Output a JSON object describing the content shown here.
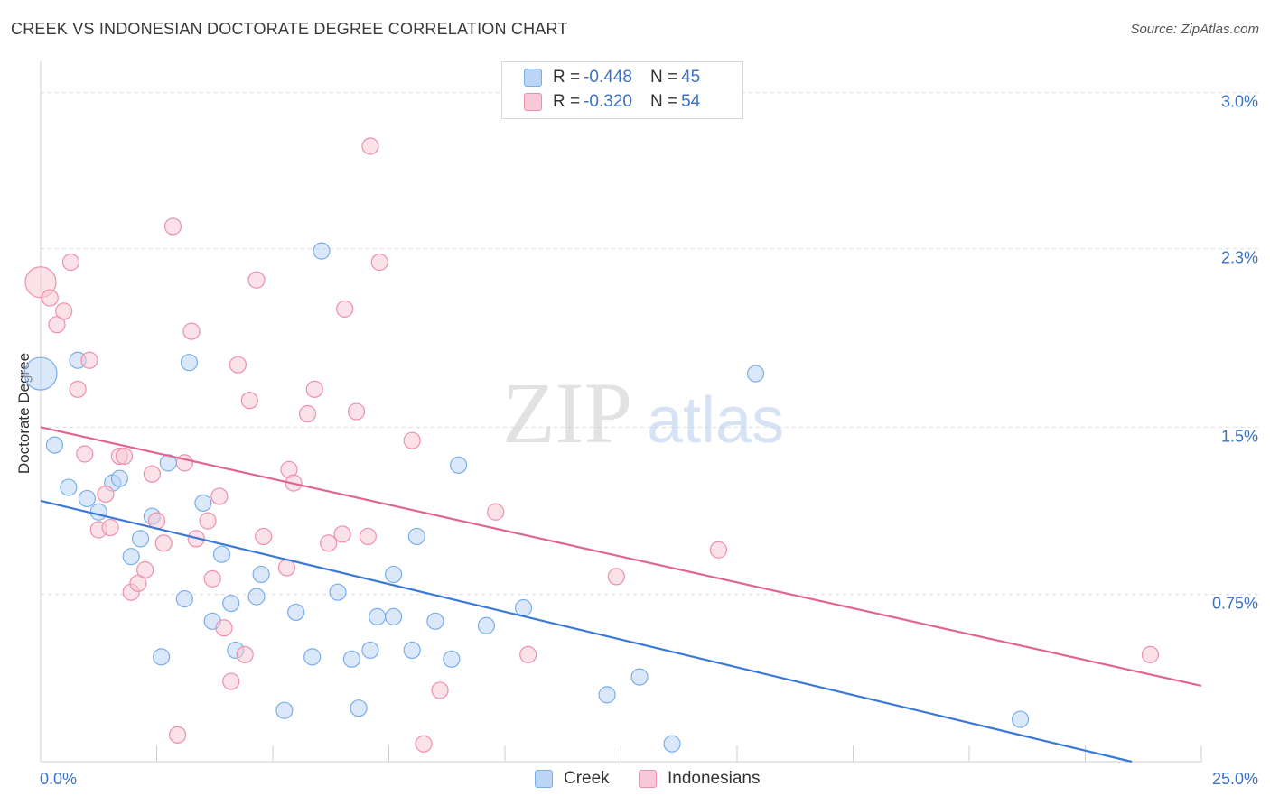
{
  "title": "CREEK VS INDONESIAN DOCTORATE DEGREE CORRELATION CHART",
  "source": "Source: ZipAtlas.com",
  "watermark": {
    "part1": "ZIP",
    "part2": "atlas"
  },
  "colors": {
    "creek": "#7aaee8",
    "creek_fill": "#bcd5f5",
    "indonesians": "#ee8fac",
    "indonesians_fill": "#f8c8d6",
    "accent": "#3a72c4"
  },
  "stats": {
    "creek": {
      "r_label": "R = ",
      "r_value": "-0.448",
      "n_label": "N = ",
      "n_value": "45"
    },
    "indonesians": {
      "r_label": "R = ",
      "r_value": "-0.320",
      "n_label": "N = ",
      "n_value": "54"
    }
  },
  "chart_data": {
    "type": "scatter",
    "title": "CREEK VS INDONESIAN DOCTORATE DEGREE CORRELATION CHART",
    "xlabel": "",
    "ylabel": "Doctorate Degree",
    "xlim": [
      0,
      25
    ],
    "ylim": [
      0,
      3.1
    ],
    "x_tick_labels": [
      "0.0%",
      "25.0%"
    ],
    "y_ticks": [
      0.75,
      1.5,
      2.3,
      3.0
    ],
    "y_tick_labels": [
      "0.75%",
      "1.5%",
      "2.3%",
      "3.0%"
    ],
    "grid": true,
    "legend": [
      "Creek",
      "Indonesians"
    ],
    "series": [
      {
        "name": "Creek",
        "trend": [
          [
            0,
            1.17
          ],
          [
            23.5,
            0
          ]
        ],
        "points": [
          [
            0,
            1.74,
            3
          ],
          [
            0.8,
            1.8,
            1
          ],
          [
            0.3,
            1.42,
            1
          ],
          [
            0.6,
            1.23,
            1
          ],
          [
            1.0,
            1.18,
            1
          ],
          [
            1.25,
            1.12,
            1
          ],
          [
            1.55,
            1.25,
            1
          ],
          [
            1.7,
            1.27,
            1
          ],
          [
            1.95,
            0.92,
            1
          ],
          [
            2.15,
            1.0,
            1
          ],
          [
            2.4,
            1.1,
            1
          ],
          [
            2.6,
            0.47,
            1
          ],
          [
            2.75,
            1.34,
            1
          ],
          [
            3.1,
            0.73,
            1
          ],
          [
            3.2,
            1.79,
            1
          ],
          [
            3.5,
            1.16,
            1
          ],
          [
            3.7,
            0.63,
            1
          ],
          [
            3.9,
            0.93,
            1
          ],
          [
            4.1,
            0.71,
            1
          ],
          [
            4.2,
            0.5,
            1
          ],
          [
            4.65,
            0.74,
            1
          ],
          [
            4.75,
            0.84,
            1
          ],
          [
            5.25,
            0.23,
            1
          ],
          [
            5.5,
            0.67,
            1
          ],
          [
            5.85,
            0.47,
            1
          ],
          [
            6.05,
            2.29,
            1
          ],
          [
            6.4,
            0.76,
            1
          ],
          [
            6.7,
            0.46,
            1
          ],
          [
            6.85,
            0.24,
            1
          ],
          [
            7.1,
            0.5,
            1
          ],
          [
            7.25,
            0.65,
            1
          ],
          [
            7.6,
            0.65,
            1
          ],
          [
            7.6,
            0.84,
            1
          ],
          [
            8.0,
            0.5,
            1
          ],
          [
            8.1,
            1.01,
            1
          ],
          [
            8.5,
            0.63,
            1
          ],
          [
            8.85,
            0.46,
            1
          ],
          [
            9.0,
            1.33,
            1
          ],
          [
            9.6,
            0.61,
            1
          ],
          [
            10.4,
            0.69,
            1
          ],
          [
            12.2,
            0.3,
            1
          ],
          [
            12.9,
            0.38,
            1
          ],
          [
            13.6,
            0.08,
            1
          ],
          [
            15.4,
            1.74,
            1
          ],
          [
            21.1,
            0.19,
            1
          ]
        ]
      },
      {
        "name": "Indonesians",
        "trend": [
          [
            0,
            1.5
          ],
          [
            25,
            0.34
          ]
        ],
        "points": [
          [
            0,
            2.15,
            2
          ],
          [
            0.2,
            2.08,
            1
          ],
          [
            0.35,
            1.96,
            1
          ],
          [
            0.5,
            2.02,
            1
          ],
          [
            0.65,
            2.24,
            1
          ],
          [
            0.8,
            1.67,
            1
          ],
          [
            0.95,
            1.38,
            1
          ],
          [
            1.05,
            1.8,
            1
          ],
          [
            1.25,
            1.04,
            1
          ],
          [
            1.4,
            1.2,
            1
          ],
          [
            1.5,
            1.05,
            1
          ],
          [
            1.7,
            1.37,
            1
          ],
          [
            1.8,
            1.37,
            1
          ],
          [
            1.95,
            0.76,
            1
          ],
          [
            2.1,
            0.8,
            1
          ],
          [
            2.25,
            0.86,
            1
          ],
          [
            2.4,
            1.29,
            1
          ],
          [
            2.5,
            1.08,
            1
          ],
          [
            2.65,
            0.98,
            1
          ],
          [
            2.85,
            2.4,
            1
          ],
          [
            2.95,
            0.12,
            1
          ],
          [
            3.1,
            1.34,
            1
          ],
          [
            3.25,
            1.93,
            1
          ],
          [
            3.35,
            1.0,
            1
          ],
          [
            3.6,
            1.08,
            1
          ],
          [
            3.7,
            0.82,
            1
          ],
          [
            3.85,
            1.19,
            1
          ],
          [
            3.95,
            0.6,
            1
          ],
          [
            4.1,
            0.36,
            1
          ],
          [
            4.25,
            1.78,
            1
          ],
          [
            4.4,
            0.48,
            1
          ],
          [
            4.5,
            1.62,
            1
          ],
          [
            4.65,
            2.16,
            1
          ],
          [
            4.8,
            1.01,
            1
          ],
          [
            5.3,
            0.87,
            1
          ],
          [
            5.35,
            1.31,
            1
          ],
          [
            5.45,
            1.25,
            1
          ],
          [
            5.75,
            1.56,
            1
          ],
          [
            5.9,
            1.67,
            1
          ],
          [
            6.2,
            0.98,
            1
          ],
          [
            6.5,
            1.02,
            1
          ],
          [
            6.55,
            2.03,
            1
          ],
          [
            6.8,
            1.57,
            1
          ],
          [
            7.05,
            1.01,
            1
          ],
          [
            7.1,
            2.76,
            1
          ],
          [
            7.3,
            2.24,
            1
          ],
          [
            8.0,
            1.44,
            1
          ],
          [
            8.25,
            0.08,
            1
          ],
          [
            8.6,
            0.32,
            1
          ],
          [
            9.8,
            1.12,
            1
          ],
          [
            10.5,
            0.48,
            1
          ],
          [
            12.4,
            0.83,
            1
          ],
          [
            14.6,
            0.95,
            1
          ],
          [
            23.9,
            0.48,
            1
          ]
        ]
      }
    ]
  }
}
